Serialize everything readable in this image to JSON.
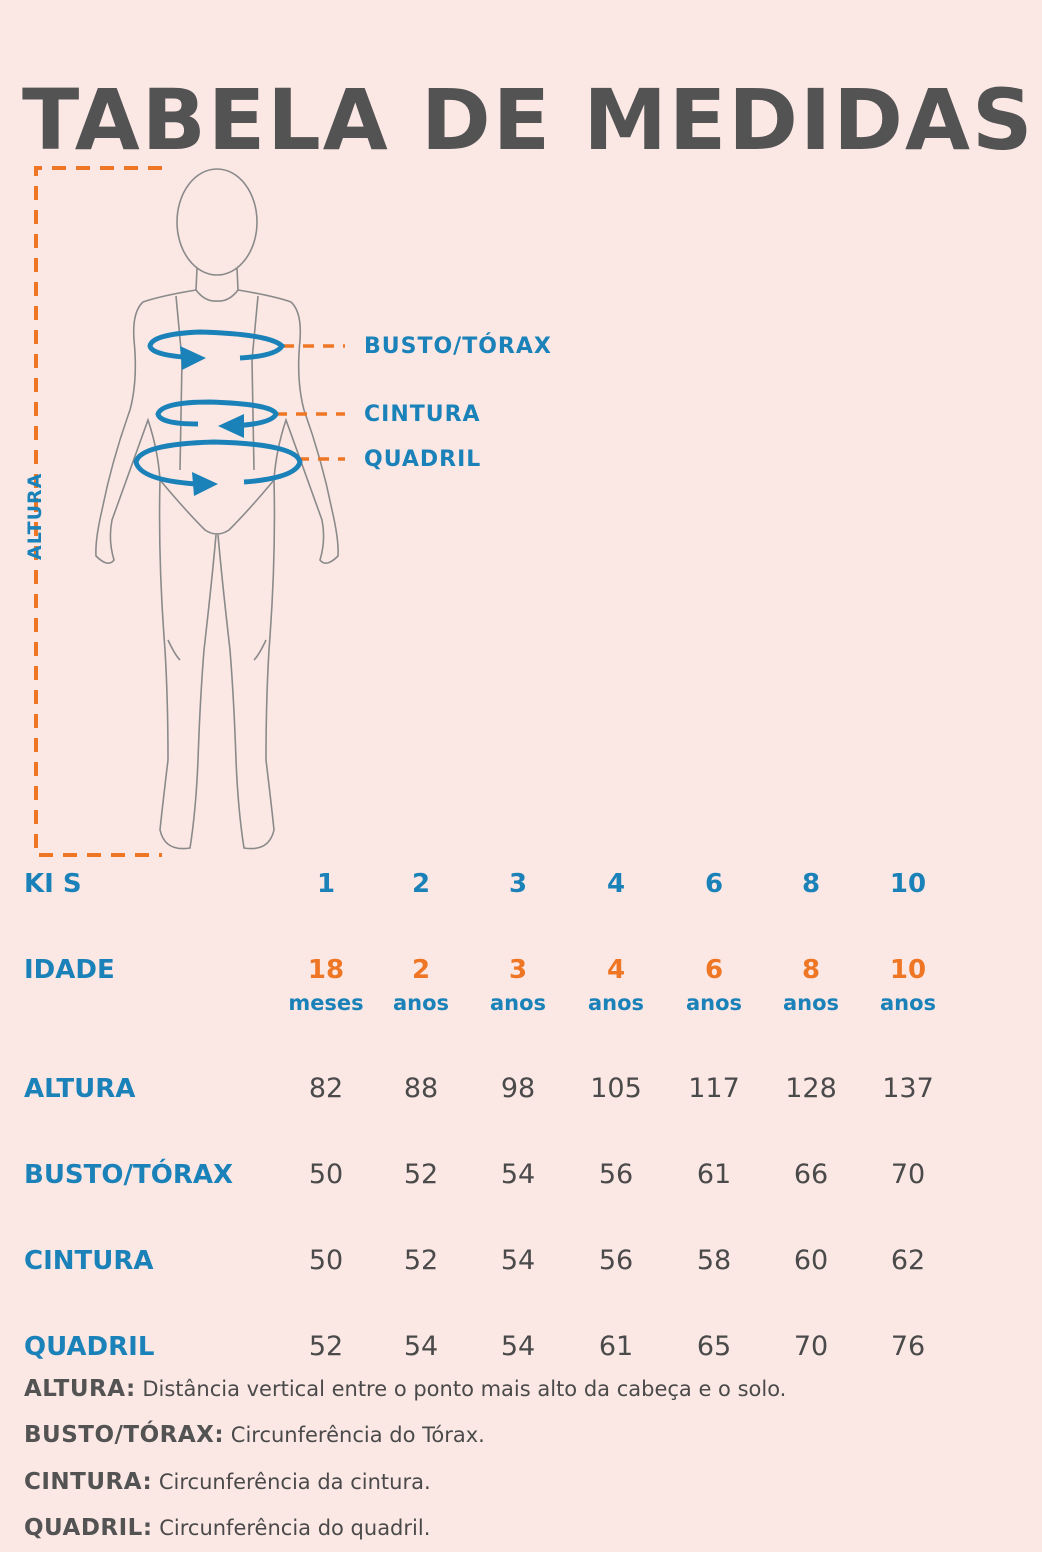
{
  "title": "TABELA DE MEDIDAS",
  "figure": {
    "altura_label": "ALTURA",
    "busto_label": "BUSTO/TÓRAX",
    "cintura_label": "CINTURA",
    "quadril_label": "QUADRIL"
  },
  "colors": {
    "background": "#fbe8e5",
    "blue": "#1a82b8",
    "orange": "#ee7624",
    "gray": "#535353"
  },
  "table": {
    "size_header": "KI  S",
    "sizes": [
      "1",
      "2",
      "3",
      "4",
      "6",
      "8",
      "10"
    ],
    "age_label": "IDADE",
    "ages": [
      {
        "num": "18",
        "unit": "meses"
      },
      {
        "num": "2",
        "unit": "anos"
      },
      {
        "num": "3",
        "unit": "anos"
      },
      {
        "num": "4",
        "unit": "anos"
      },
      {
        "num": "6",
        "unit": "anos"
      },
      {
        "num": "8",
        "unit": "anos"
      },
      {
        "num": "10",
        "unit": "anos"
      }
    ],
    "rows": [
      {
        "label": "ALTURA",
        "values": [
          "82",
          "88",
          "98",
          "105",
          "117",
          "128",
          "137"
        ]
      },
      {
        "label": "BUSTO/TÓRAX",
        "values": [
          "50",
          "52",
          "54",
          "56",
          "61",
          "66",
          "70"
        ]
      },
      {
        "label": "CINTURA",
        "values": [
          "50",
          "52",
          "54",
          "56",
          "58",
          "60",
          "62"
        ]
      },
      {
        "label": "QUADRIL",
        "values": [
          "52",
          "54",
          "54",
          "61",
          "65",
          "70",
          "76"
        ]
      }
    ]
  },
  "definitions": [
    {
      "term": "ALTURA:",
      "text": " Distância vertical entre o ponto mais alto da cabeça e o solo."
    },
    {
      "term": "BUSTO/TÓRAX:",
      "text": " Circunferência do Tórax."
    },
    {
      "term": "CINTURA:",
      "text": " Circunferência da cintura."
    },
    {
      "term": "QUADRIL:",
      "text": " Circunferência do quadril."
    }
  ]
}
